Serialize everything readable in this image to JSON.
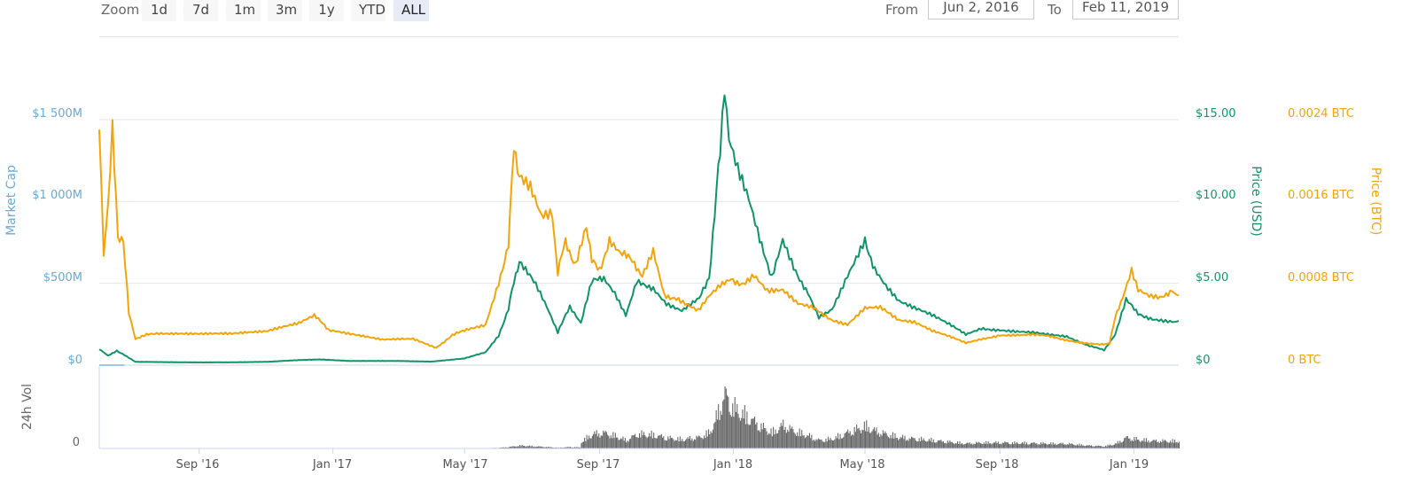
{
  "toolbar": {
    "zoom_label": "Zoom",
    "zoom_buttons": [
      "1d",
      "7d",
      "1m",
      "3m",
      "1y",
      "YTD",
      "ALL"
    ],
    "active_zoom": "ALL",
    "from_label": "From",
    "from_value": "Jun 2, 2016",
    "to_label": "To",
    "to_value": "Feb 11, 2019"
  },
  "colors": {
    "market_cap": "#7cb5ec",
    "price_usd": "#109466",
    "price_btc": "#f5a30a",
    "volume": "#666666",
    "grid": "#e6e6e6"
  },
  "chart_data": {
    "type": "line",
    "x_range": [
      "2016-06-02",
      "2019-02-11"
    ],
    "x_ticks": [
      {
        "label": "Sep '16",
        "date": "2016-09-01"
      },
      {
        "label": "Jan '17",
        "date": "2017-01-01"
      },
      {
        "label": "May '17",
        "date": "2017-05-01"
      },
      {
        "label": "Sep '17",
        "date": "2017-09-01"
      },
      {
        "label": "Jan '18",
        "date": "2018-01-01"
      },
      {
        "label": "May '18",
        "date": "2018-05-01"
      },
      {
        "label": "Sep '18",
        "date": "2018-09-01"
      },
      {
        "label": "Jan '19",
        "date": "2019-01-01"
      }
    ],
    "axes": {
      "market_cap": {
        "label": "Market Cap",
        "range": [
          0,
          1500000000
        ],
        "ticks": [
          "$0",
          "$500M",
          "$1 000M",
          "$1 500M"
        ]
      },
      "price_usd": {
        "label": "Price (USD)",
        "range": [
          0,
          15
        ],
        "ticks": [
          "$0",
          "$5.00",
          "$10.00",
          "$15.00"
        ]
      },
      "price_btc": {
        "label": "Price (BTC)",
        "range": [
          0,
          0.0024
        ],
        "ticks": [
          "0 BTC",
          "0.0008 BTC",
          "0.0016 BTC",
          "0.0024 BTC"
        ]
      },
      "volume": {
        "label": "24h Vol",
        "ticks": [
          "0"
        ]
      }
    },
    "series": [
      {
        "name": "Price (BTC)",
        "axis": "price_btc",
        "points": [
          [
            "2016-06-02",
            0.0024
          ],
          [
            "2016-06-06",
            0.0011
          ],
          [
            "2016-06-10",
            0.0016
          ],
          [
            "2016-06-14",
            0.0024
          ],
          [
            "2016-06-19",
            0.0012
          ],
          [
            "2016-06-24",
            0.00125
          ],
          [
            "2016-06-29",
            0.0005
          ],
          [
            "2016-07-05",
            0.00025
          ],
          [
            "2016-07-15",
            0.0003
          ],
          [
            "2016-08-01",
            0.0003
          ],
          [
            "2016-09-01",
            0.00031
          ],
          [
            "2016-10-01",
            0.0003
          ],
          [
            "2016-11-01",
            0.00033
          ],
          [
            "2016-12-01",
            0.0004
          ],
          [
            "2016-12-15",
            0.00048
          ],
          [
            "2016-12-28",
            0.00034
          ],
          [
            "2017-01-15",
            0.0003
          ],
          [
            "2017-02-15",
            0.00025
          ],
          [
            "2017-03-15",
            0.00025
          ],
          [
            "2017-04-05",
            0.00017
          ],
          [
            "2017-04-20",
            0.0003
          ],
          [
            "2017-05-01",
            0.00033
          ],
          [
            "2017-05-20",
            0.0004
          ],
          [
            "2017-06-01",
            0.0008
          ],
          [
            "2017-06-10",
            0.0012
          ],
          [
            "2017-06-15",
            0.0021
          ],
          [
            "2017-06-20",
            0.0019
          ],
          [
            "2017-06-30",
            0.0018
          ],
          [
            "2017-07-10",
            0.0015
          ],
          [
            "2017-07-20",
            0.0015
          ],
          [
            "2017-07-25",
            0.0009
          ],
          [
            "2017-08-01",
            0.0012
          ],
          [
            "2017-08-10",
            0.001
          ],
          [
            "2017-08-20",
            0.0014
          ],
          [
            "2017-08-25",
            0.001
          ],
          [
            "2017-09-01",
            0.00095
          ],
          [
            "2017-09-10",
            0.0012
          ],
          [
            "2017-09-20",
            0.0011
          ],
          [
            "2017-10-01",
            0.001
          ],
          [
            "2017-10-10",
            0.0009
          ],
          [
            "2017-10-20",
            0.00115
          ],
          [
            "2017-10-30",
            0.0007
          ],
          [
            "2017-11-10",
            0.00065
          ],
          [
            "2017-11-20",
            0.0006
          ],
          [
            "2017-11-30",
            0.00055
          ],
          [
            "2017-12-10",
            0.0007
          ],
          [
            "2017-12-20",
            0.0008
          ],
          [
            "2017-12-30",
            0.00085
          ],
          [
            "2018-01-10",
            0.0008
          ],
          [
            "2018-01-20",
            0.0009
          ],
          [
            "2018-02-01",
            0.00075
          ],
          [
            "2018-02-15",
            0.00075
          ],
          [
            "2018-03-01",
            0.0006
          ],
          [
            "2018-03-15",
            0.00055
          ],
          [
            "2018-04-01",
            0.00045
          ],
          [
            "2018-04-15",
            0.0004
          ],
          [
            "2018-05-01",
            0.00055
          ],
          [
            "2018-05-15",
            0.00055
          ],
          [
            "2018-06-01",
            0.00045
          ],
          [
            "2018-06-15",
            0.00042
          ],
          [
            "2018-07-01",
            0.00033
          ],
          [
            "2018-07-15",
            0.00028
          ],
          [
            "2018-08-01",
            0.00022
          ],
          [
            "2018-08-15",
            0.00025
          ],
          [
            "2018-09-01",
            0.0003
          ],
          [
            "2018-09-15",
            0.0003
          ],
          [
            "2018-10-01",
            0.0003
          ],
          [
            "2018-10-15",
            0.00028
          ],
          [
            "2018-11-01",
            0.00025
          ],
          [
            "2018-11-15",
            0.00022
          ],
          [
            "2018-12-01",
            0.0002
          ],
          [
            "2018-12-10",
            0.00022
          ],
          [
            "2018-12-15",
            0.00045
          ],
          [
            "2018-12-22",
            0.00068
          ],
          [
            "2018-12-30",
            0.00095
          ],
          [
            "2019-01-05",
            0.00075
          ],
          [
            "2019-01-15",
            0.00068
          ],
          [
            "2019-01-25",
            0.00065
          ],
          [
            "2019-02-05",
            0.00075
          ],
          [
            "2019-02-11",
            0.00068
          ]
        ]
      },
      {
        "name": "Price (USD)",
        "axis": "price_usd",
        "points": [
          [
            "2016-06-02",
            1.0
          ],
          [
            "2016-06-10",
            0.6
          ],
          [
            "2016-06-18",
            0.9
          ],
          [
            "2016-06-25",
            0.6
          ],
          [
            "2016-07-05",
            0.2
          ],
          [
            "2016-08-01",
            0.18
          ],
          [
            "2016-09-01",
            0.17
          ],
          [
            "2016-10-01",
            0.17
          ],
          [
            "2016-11-01",
            0.2
          ],
          [
            "2016-12-01",
            0.3
          ],
          [
            "2016-12-20",
            0.35
          ],
          [
            "2017-01-15",
            0.25
          ],
          [
            "2017-03-01",
            0.25
          ],
          [
            "2017-04-01",
            0.22
          ],
          [
            "2017-05-01",
            0.4
          ],
          [
            "2017-05-20",
            0.8
          ],
          [
            "2017-06-01",
            1.8
          ],
          [
            "2017-06-10",
            3.5
          ],
          [
            "2017-06-15",
            5.0
          ],
          [
            "2017-06-20",
            6.5
          ],
          [
            "2017-07-05",
            4.8
          ],
          [
            "2017-07-15",
            3.5
          ],
          [
            "2017-07-25",
            2.0
          ],
          [
            "2017-08-05",
            3.5
          ],
          [
            "2017-08-15",
            2.5
          ],
          [
            "2017-08-25",
            5.0
          ],
          [
            "2017-09-05",
            5.4
          ],
          [
            "2017-09-15",
            4.4
          ],
          [
            "2017-09-25",
            3.0
          ],
          [
            "2017-10-05",
            5.0
          ],
          [
            "2017-10-20",
            4.8
          ],
          [
            "2017-11-01",
            3.8
          ],
          [
            "2017-11-15",
            3.3
          ],
          [
            "2017-12-01",
            4.0
          ],
          [
            "2017-12-10",
            5.5
          ],
          [
            "2017-12-15",
            9.0
          ],
          [
            "2017-12-20",
            13.5
          ],
          [
            "2017-12-24",
            17.2
          ],
          [
            "2017-12-28",
            14.0
          ],
          [
            "2018-01-05",
            12.0
          ],
          [
            "2018-01-15",
            10.0
          ],
          [
            "2018-01-25",
            7.5
          ],
          [
            "2018-02-05",
            5.5
          ],
          [
            "2018-02-15",
            7.8
          ],
          [
            "2018-02-25",
            6.0
          ],
          [
            "2018-03-10",
            4.5
          ],
          [
            "2018-03-20",
            3.0
          ],
          [
            "2018-04-01",
            3.5
          ],
          [
            "2018-04-15",
            5.5
          ],
          [
            "2018-05-01",
            7.5
          ],
          [
            "2018-05-10",
            6.0
          ],
          [
            "2018-05-20",
            5.0
          ],
          [
            "2018-06-01",
            4.0
          ],
          [
            "2018-06-15",
            3.5
          ],
          [
            "2018-07-01",
            3.0
          ],
          [
            "2018-07-15",
            2.5
          ],
          [
            "2018-08-01",
            1.9
          ],
          [
            "2018-08-15",
            2.2
          ],
          [
            "2018-09-01",
            2.2
          ],
          [
            "2018-10-01",
            2.0
          ],
          [
            "2018-11-01",
            1.8
          ],
          [
            "2018-11-20",
            1.2
          ],
          [
            "2018-12-05",
            0.9
          ],
          [
            "2018-12-15",
            1.8
          ],
          [
            "2018-12-25",
            3.9
          ],
          [
            "2019-01-05",
            3.2
          ],
          [
            "2019-01-20",
            2.8
          ],
          [
            "2019-02-11",
            2.7
          ]
        ]
      },
      {
        "name": "Market Cap",
        "axis": "market_cap",
        "points": [
          [
            "2016-06-02",
            0
          ],
          [
            "2016-06-25",
            0
          ]
        ]
      }
    ]
  }
}
